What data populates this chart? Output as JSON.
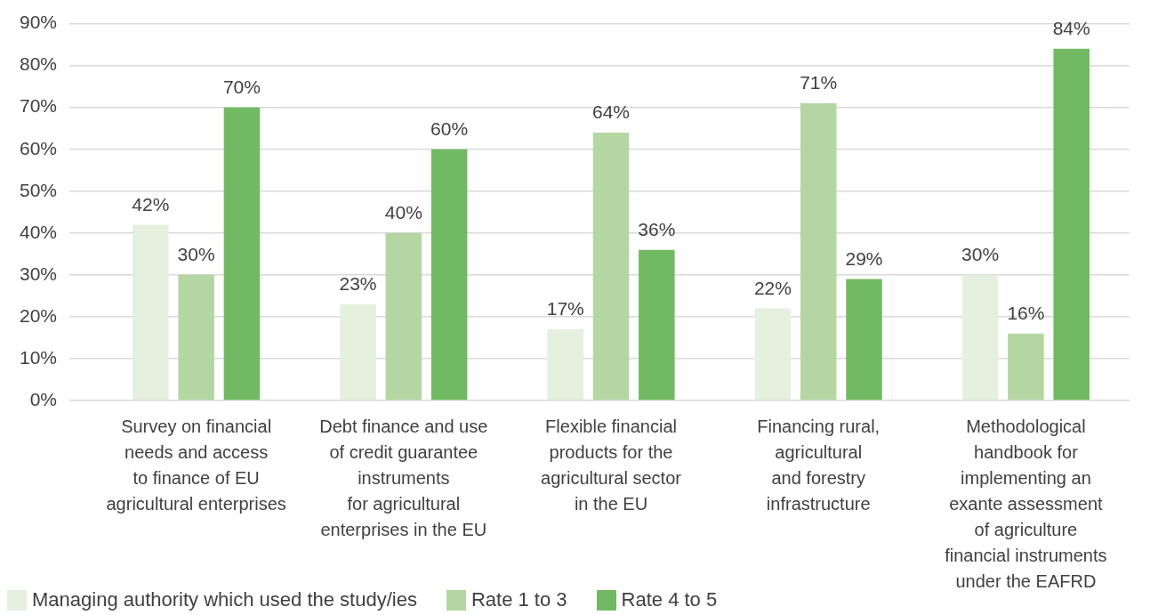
{
  "chart_data": {
    "type": "bar",
    "categories": [
      "Survey on financial\nneeds and access\nto finance of EU\nagricultural enterprises",
      "Debt finance and use\nof credit guarantee\ninstruments\nfor agricultural\nenterprises in the EU",
      "Flexible financial\nproducts for the\nagricultural sector\nin the EU",
      "Financing rural,\nagricultural\nand forestry\ninfrastructure",
      "Methodological\nhandbook for\nimplementing an\nexante assessment\nof agriculture\nfinancial instruments\nunder the EAFRD"
    ],
    "series": [
      {
        "name": "Managing authority which used the study/ies",
        "color": "#e5f0df",
        "values": [
          42,
          23,
          17,
          22,
          30
        ],
        "value_labels": [
          "42%",
          "23%",
          "17%",
          "22%",
          "30%"
        ]
      },
      {
        "name": "Rate 1 to 3",
        "color": "#b4d6a3",
        "values": [
          30,
          40,
          64,
          71,
          16
        ],
        "value_labels": [
          "30%",
          "40%",
          "64%",
          "71%",
          "16%"
        ]
      },
      {
        "name": "Rate 4 to 5",
        "color": "#72b964",
        "values": [
          70,
          60,
          36,
          29,
          84
        ],
        "value_labels": [
          "70%",
          "60%",
          "36%",
          "29%",
          "84%"
        ]
      }
    ],
    "ylim": [
      0,
      90
    ],
    "yticks": [
      {
        "value": 0,
        "label": "0%"
      },
      {
        "value": 10,
        "label": "10%"
      },
      {
        "value": 20,
        "label": "20%"
      },
      {
        "value": 30,
        "label": "30%"
      },
      {
        "value": 40,
        "label": "40%"
      },
      {
        "value": 50,
        "label": "50%"
      },
      {
        "value": 60,
        "label": "60%"
      },
      {
        "value": 70,
        "label": "70%"
      },
      {
        "value": 80,
        "label": "80%"
      },
      {
        "value": 90,
        "label": "90%"
      }
    ],
    "grid": "y",
    "legend": "bottom left"
  }
}
